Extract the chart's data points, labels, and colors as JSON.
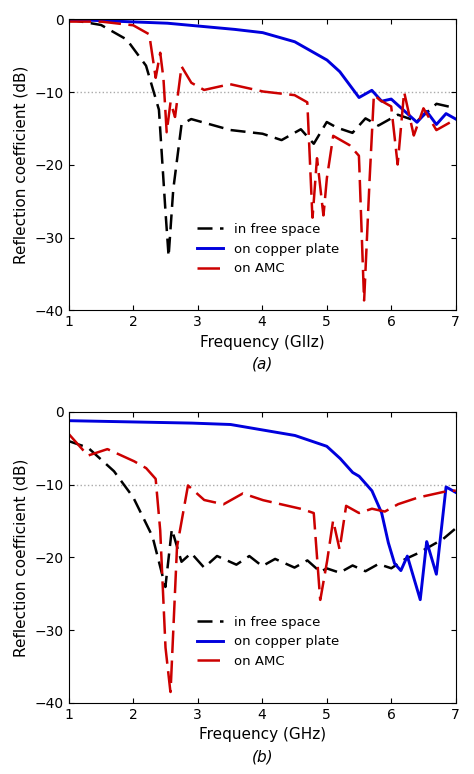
{
  "fig_width": 4.74,
  "fig_height": 7.74,
  "dpi": 100,
  "background_color": "#ffffff",
  "xlim": [
    1,
    7
  ],
  "ylim": [
    -40,
    0
  ],
  "xticks": [
    1,
    2,
    3,
    4,
    5,
    6,
    7
  ],
  "yticks": [
    -40,
    -30,
    -20,
    -10,
    0
  ],
  "xlabel_a": "Frequency (GIIz)",
  "xlabel_b": "Frequency (GHz)",
  "ylabel": "Reflection coefficient (dB)",
  "hline_y": -10,
  "hline_color": "#aaaaaa",
  "label_free": "in free space",
  "label_copper": "on copper plate",
  "label_amc": "on AMC",
  "color_free": "#000000",
  "color_copper": "#0000dd",
  "color_amc": "#cc0000",
  "caption_a": "(a)",
  "caption_b": "(b)",
  "label_fontsize": 11,
  "tick_fontsize": 10,
  "legend_fontsize": 9.5
}
